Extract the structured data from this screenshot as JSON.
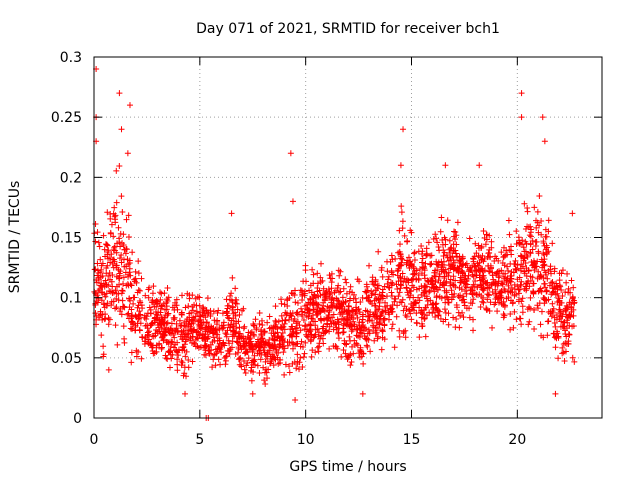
{
  "chart_data": {
    "type": "scatter",
    "title": "Day 071 of 2021, SRMTID for receiver bch1",
    "xlabel": "GPS time / hours",
    "ylabel": "SRMTID / TECUs",
    "xlim": [
      0,
      24
    ],
    "ylim": [
      0,
      0.3
    ],
    "xticks": [
      0,
      5,
      10,
      15,
      20
    ],
    "xtick_labels": [
      "0",
      "5",
      "10",
      "15",
      "20"
    ],
    "yticks": [
      0,
      0.05,
      0.1,
      0.15,
      0.2,
      0.25,
      0.3
    ],
    "ytick_labels": [
      "0",
      "0.05",
      "0.1",
      "0.15",
      "0.2",
      "0.25",
      "0.3"
    ],
    "grid": true,
    "marker": "+",
    "color": "#ff0000",
    "x_range": [
      0,
      22.7
    ],
    "envelope": [
      [
        0.0,
        0.05,
        0.17
      ],
      [
        0.5,
        0.05,
        0.16
      ],
      [
        1.0,
        0.04,
        0.22
      ],
      [
        1.5,
        0.04,
        0.2
      ],
      [
        2.0,
        0.04,
        0.14
      ],
      [
        2.5,
        0.04,
        0.12
      ],
      [
        3.0,
        0.04,
        0.12
      ],
      [
        3.5,
        0.04,
        0.11
      ],
      [
        4.0,
        0.03,
        0.1
      ],
      [
        4.5,
        0.03,
        0.11
      ],
      [
        5.0,
        0.05,
        0.11
      ],
      [
        5.5,
        0.04,
        0.1
      ],
      [
        6.0,
        0.03,
        0.09
      ],
      [
        6.5,
        0.04,
        0.13
      ],
      [
        7.0,
        0.03,
        0.09
      ],
      [
        7.5,
        0.03,
        0.09
      ],
      [
        8.0,
        0.03,
        0.09
      ],
      [
        8.5,
        0.03,
        0.09
      ],
      [
        9.0,
        0.03,
        0.12
      ],
      [
        9.5,
        0.03,
        0.12
      ],
      [
        10.0,
        0.04,
        0.13
      ],
      [
        10.5,
        0.05,
        0.13
      ],
      [
        11.0,
        0.05,
        0.13
      ],
      [
        11.5,
        0.05,
        0.13
      ],
      [
        12.0,
        0.04,
        0.12
      ],
      [
        12.5,
        0.04,
        0.12
      ],
      [
        13.0,
        0.04,
        0.13
      ],
      [
        13.5,
        0.05,
        0.14
      ],
      [
        14.0,
        0.05,
        0.15
      ],
      [
        14.5,
        0.06,
        0.18
      ],
      [
        15.0,
        0.06,
        0.16
      ],
      [
        15.5,
        0.06,
        0.16
      ],
      [
        16.0,
        0.06,
        0.17
      ],
      [
        16.5,
        0.06,
        0.18
      ],
      [
        17.0,
        0.06,
        0.18
      ],
      [
        17.5,
        0.07,
        0.16
      ],
      [
        18.0,
        0.07,
        0.17
      ],
      [
        18.5,
        0.07,
        0.17
      ],
      [
        19.0,
        0.07,
        0.15
      ],
      [
        19.5,
        0.07,
        0.16
      ],
      [
        20.0,
        0.07,
        0.17
      ],
      [
        20.5,
        0.06,
        0.19
      ],
      [
        21.0,
        0.06,
        0.2
      ],
      [
        21.5,
        0.05,
        0.17
      ],
      [
        22.0,
        0.04,
        0.13
      ],
      [
        22.5,
        0.04,
        0.12
      ],
      [
        22.7,
        0.04,
        0.12
      ]
    ],
    "highlights": [
      {
        "x": 0.1,
        "y": 0.29
      },
      {
        "x": 0.1,
        "y": 0.25
      },
      {
        "x": 0.1,
        "y": 0.23
      },
      {
        "x": 1.2,
        "y": 0.27
      },
      {
        "x": 1.3,
        "y": 0.24
      },
      {
        "x": 1.7,
        "y": 0.26
      },
      {
        "x": 1.6,
        "y": 0.22
      },
      {
        "x": 9.3,
        "y": 0.22
      },
      {
        "x": 9.4,
        "y": 0.18
      },
      {
        "x": 6.5,
        "y": 0.17
      },
      {
        "x": 14.6,
        "y": 0.24
      },
      {
        "x": 14.5,
        "y": 0.21
      },
      {
        "x": 16.6,
        "y": 0.21
      },
      {
        "x": 18.2,
        "y": 0.21
      },
      {
        "x": 20.2,
        "y": 0.27
      },
      {
        "x": 20.2,
        "y": 0.25
      },
      {
        "x": 21.2,
        "y": 0.25
      },
      {
        "x": 21.3,
        "y": 0.23
      },
      {
        "x": 22.6,
        "y": 0.17
      },
      {
        "x": 5.3,
        "y": 0.0
      },
      {
        "x": 5.4,
        "y": 0.0
      },
      {
        "x": 0.7,
        "y": 0.04
      },
      {
        "x": 4.3,
        "y": 0.02
      },
      {
        "x": 7.5,
        "y": 0.02
      },
      {
        "x": 9.5,
        "y": 0.015
      },
      {
        "x": 12.7,
        "y": 0.02
      },
      {
        "x": 21.8,
        "y": 0.02
      }
    ]
  }
}
